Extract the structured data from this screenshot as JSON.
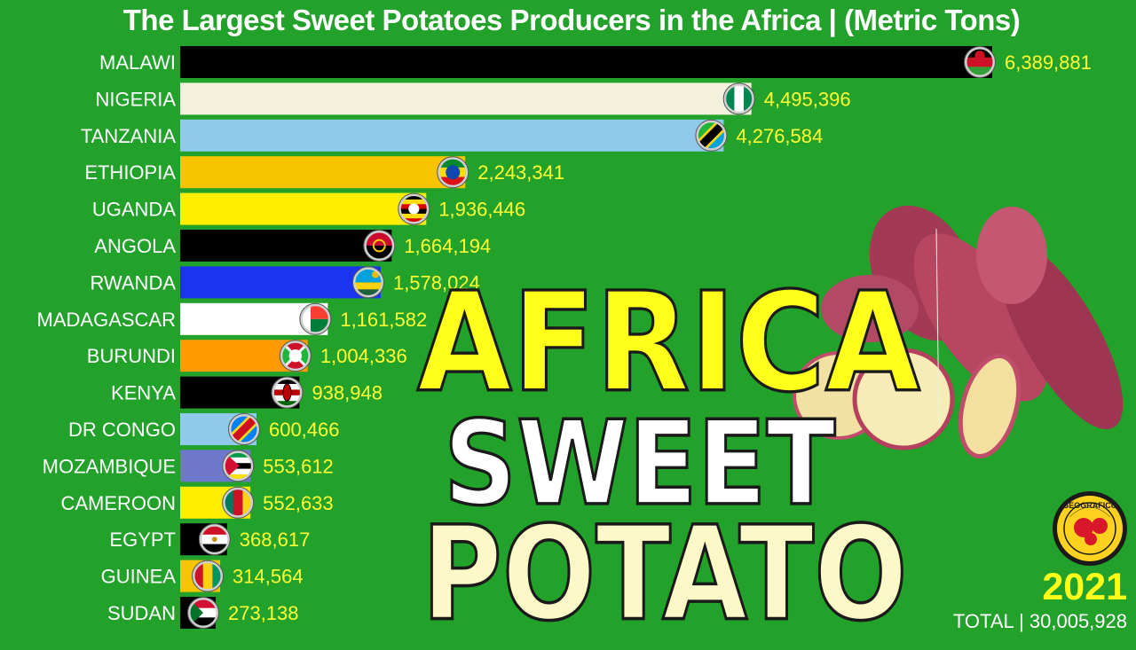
{
  "title": "The Largest Sweet Potatoes Producers in the Africa | (Metric Tons)",
  "overlay": {
    "line1": "AFRICA",
    "line2": "SWEET",
    "line3": "POTATO"
  },
  "year": "2021",
  "total": {
    "label": "TOTAL | ",
    "value": "30,005,928"
  },
  "logo": {
    "text": "GEOGRAFICO",
    "icon": "rose-emblem-icon"
  },
  "colors": {
    "background": "#22a12b",
    "value_text": "#ffff33",
    "label_text": "#ffffff"
  },
  "chart_data": {
    "type": "bar",
    "orientation": "horizontal",
    "title": "The Largest Sweet Potatoes Producers in the Africa | (Metric Tons)",
    "xlim": [
      0,
      6389881
    ],
    "grid": false,
    "legend": "none",
    "categories": [
      "MALAWI",
      "NIGERIA",
      "TANZANIA",
      "ETHIOPIA",
      "UGANDA",
      "ANGOLA",
      "RWANDA",
      "MADAGASCAR",
      "BURUNDI",
      "KENYA",
      "DR CONGO",
      "MOZAMBIQUE",
      "CAMEROON",
      "EGYPT",
      "GUINEA",
      "SUDAN"
    ],
    "values": [
      6389881,
      4495396,
      4276584,
      2243341,
      1936446,
      1664194,
      1578024,
      1161582,
      1004336,
      938948,
      600466,
      553612,
      552633,
      368617,
      314564,
      273138
    ],
    "value_labels": [
      "6,389,881",
      "4,495,396",
      "4,276,584",
      "2,243,341",
      "1,936,446",
      "1,664,194",
      "1,578,024",
      "1,161,582",
      "1,004,336",
      "938,948",
      "600,466",
      "553,612",
      "552,633",
      "368,617",
      "314,564",
      "273,138"
    ],
    "bar_colors": [
      "#000000",
      "#f3f0dc",
      "#8fc9ec",
      "#f8c400",
      "#ffee00",
      "#000000",
      "#1b34f0",
      "#ffffff",
      "#ff9900",
      "#000000",
      "#8fc9ec",
      "#6f79cc",
      "#ffee00",
      "#000000",
      "#f8c400",
      "#000000"
    ],
    "flags": [
      "malawi-flag-icon",
      "nigeria-flag-icon",
      "tanzania-flag-icon",
      "ethiopia-flag-icon",
      "uganda-flag-icon",
      "angola-flag-icon",
      "rwanda-flag-icon",
      "madagascar-flag-icon",
      "burundi-flag-icon",
      "kenya-flag-icon",
      "dr-congo-flag-icon",
      "mozambique-flag-icon",
      "cameroon-flag-icon",
      "egypt-flag-icon",
      "guinea-flag-icon",
      "sudan-flag-icon"
    ]
  }
}
